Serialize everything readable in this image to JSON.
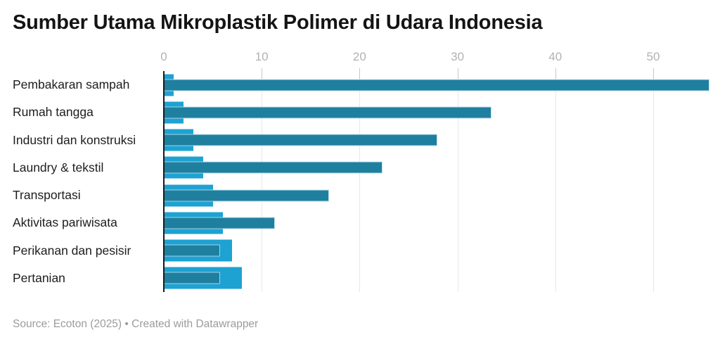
{
  "header": {
    "title": "Sumber Utama Mikroplastik Polimer di Udara Indonesia"
  },
  "footer": {
    "source": "Source: Ecoton (2025)",
    "separator": "•",
    "attribution": "Created with Datawrapper"
  },
  "colors": {
    "light_bar": "#1ea2d2",
    "dark_bar": "#1f7f9e",
    "axis_line": "#1a1a1a",
    "gridline": "#e7e7e7",
    "tick_mark": "#c6c6c6",
    "tick_label": "#b2b2b2",
    "category_label": "#1d1d1d",
    "title_text": "#141414",
    "footer_text": "#9c9c9c"
  },
  "chart_data": {
    "type": "bar",
    "orientation": "horizontal",
    "title": "Sumber Utama Mikroplastik Polimer di Udara Indonesia",
    "xlabel": "",
    "ylabel": "",
    "categories": [
      "Pembakaran sampah",
      "Rumah tangga",
      "Industri dan konstruksi",
      "Laundry & tekstil",
      "Transportasi",
      "Aktivitas pariwisata",
      "Perikanan dan pesisir",
      "Pertanian"
    ],
    "series": [
      {
        "name": "short-light-bar",
        "values": [
          1,
          2,
          3,
          4,
          5,
          6,
          7,
          8
        ]
      },
      {
        "name": "long-dark-bar",
        "values": [
          55.7,
          33.4,
          27.9,
          22.3,
          16.8,
          11.3,
          5.7,
          5.7
        ]
      }
    ],
    "x_ticks": [
      0,
      10,
      20,
      30,
      40,
      50
    ],
    "xlim": [
      0,
      55.8
    ],
    "grid": true,
    "legend": false
  }
}
